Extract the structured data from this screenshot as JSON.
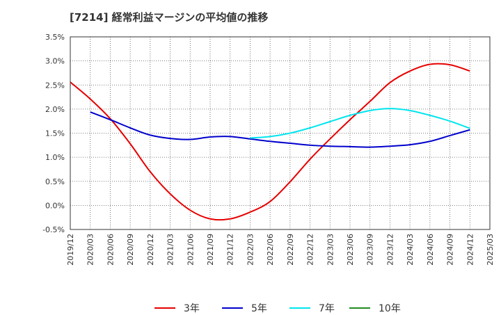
{
  "chart_data": {
    "type": "line",
    "title": "[7214]  経常利益マージンの平均値の推移",
    "xlabel": "",
    "ylabel": "",
    "ylim": [
      -0.5,
      3.5
    ],
    "y_ticks": [
      "-0.5%",
      "0.0%",
      "0.5%",
      "1.0%",
      "1.5%",
      "2.0%",
      "2.5%",
      "3.0%",
      "3.5%"
    ],
    "y_tick_values": [
      -0.5,
      0,
      0.5,
      1,
      1.5,
      2,
      2.5,
      3,
      3.5
    ],
    "x_ticks": [
      "2019/12",
      "2020/03",
      "2020/06",
      "2020/09",
      "2020/12",
      "2021/03",
      "2021/06",
      "2021/09",
      "2021/12",
      "2022/03",
      "2022/06",
      "2022/09",
      "2022/12",
      "2023/03",
      "2023/06",
      "2023/09",
      "2023/12",
      "2024/03",
      "2024/06",
      "2024/09",
      "2024/12",
      "2025/03"
    ],
    "grid": true,
    "legend_position": "bottom",
    "series": [
      {
        "name": "3年",
        "color": "#e60000",
        "x": [
          "2019/12",
          "2020/03",
          "2020/06",
          "2020/09",
          "2020/12",
          "2021/03",
          "2021/06",
          "2021/09",
          "2021/12",
          "2022/03",
          "2022/06",
          "2022/09",
          "2022/12",
          "2023/03",
          "2023/06",
          "2023/09",
          "2023/12",
          "2024/03",
          "2024/06",
          "2024/09",
          "2024/12"
        ],
        "values": [
          2.56,
          2.21,
          1.8,
          1.28,
          0.7,
          0.24,
          -0.1,
          -0.28,
          -0.28,
          -0.14,
          0.08,
          0.49,
          0.96,
          1.38,
          1.78,
          2.16,
          2.55,
          2.79,
          2.93,
          2.92,
          2.79
        ]
      },
      {
        "name": "5年",
        "color": "#0000cc",
        "x": [
          "2020/03",
          "2020/06",
          "2020/09",
          "2020/12",
          "2021/03",
          "2021/06",
          "2021/09",
          "2021/12",
          "2022/03",
          "2022/06",
          "2022/09",
          "2022/12",
          "2023/03",
          "2023/06",
          "2023/09",
          "2023/12",
          "2024/03",
          "2024/06",
          "2024/09",
          "2024/12"
        ],
        "values": [
          1.94,
          1.78,
          1.61,
          1.46,
          1.39,
          1.37,
          1.42,
          1.43,
          1.38,
          1.33,
          1.29,
          1.25,
          1.23,
          1.22,
          1.21,
          1.23,
          1.26,
          1.33,
          1.45,
          1.57
        ]
      },
      {
        "name": "7年",
        "color": "#00e5ee",
        "x": [
          "2022/03",
          "2022/06",
          "2022/09",
          "2022/12",
          "2023/03",
          "2023/06",
          "2023/09",
          "2023/12",
          "2024/03",
          "2024/06",
          "2024/09",
          "2024/12"
        ],
        "values": [
          1.4,
          1.43,
          1.5,
          1.61,
          1.74,
          1.87,
          1.97,
          2.01,
          1.97,
          1.87,
          1.75,
          1.6
        ]
      },
      {
        "name": "10年",
        "color": "#228b22",
        "x": [],
        "values": []
      }
    ]
  }
}
